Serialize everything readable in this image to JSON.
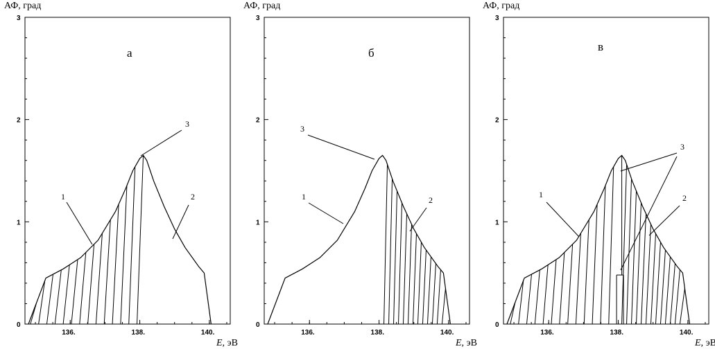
{
  "charts": [
    {
      "letter": "а",
      "ylabel": "АФ,  град",
      "xlabel_var": "E,",
      "xlabel_unit": " эВ"
    },
    {
      "letter": "б",
      "ylabel": "АФ,  град",
      "xlabel_var": "E,",
      "xlabel_unit": " эВ"
    },
    {
      "letter": "в",
      "ylabel": "АФ,  град",
      "xlabel_var": "E,",
      "xlabel_unit": " эВ"
    }
  ],
  "x_ticks": [
    "136.",
    "138.",
    "140."
  ],
  "y_ticks": [
    "0",
    "1",
    "2",
    "3"
  ],
  "curve_labels": [
    "1",
    "2",
    "3"
  ],
  "chart_data": [
    {
      "type": "area",
      "title": "а",
      "xlabel": "E, эВ",
      "ylabel": "АФ, град",
      "xlim": [
        134.7,
        140.6
      ],
      "ylim": [
        0,
        3
      ],
      "curve": {
        "x": [
          134.8,
          135.3,
          135.8,
          136.3,
          136.8,
          137.3,
          137.6,
          137.8,
          138.0,
          138.1,
          138.2,
          138.4,
          138.7,
          139.0,
          139.3,
          139.7,
          139.85,
          140.05
        ],
        "y": [
          0.0,
          0.45,
          0.54,
          0.65,
          0.82,
          1.1,
          1.33,
          1.5,
          1.62,
          1.65,
          1.6,
          1.4,
          1.15,
          0.93,
          0.75,
          0.56,
          0.5,
          0.0
        ]
      },
      "hatched_range": [
        134.8,
        138.1
      ],
      "labels": [
        "1",
        "2",
        "3"
      ]
    },
    {
      "type": "area",
      "title": "б",
      "xlabel": "E, эВ",
      "ylabel": "АФ, град",
      "xlim": [
        134.7,
        140.6
      ],
      "ylim": [
        0,
        3
      ],
      "curve": {
        "x": [
          134.8,
          135.3,
          135.8,
          136.3,
          136.8,
          137.3,
          137.6,
          137.8,
          138.0,
          138.1,
          138.2,
          138.4,
          138.7,
          139.0,
          139.3,
          139.7,
          139.85,
          140.05
        ],
        "y": [
          0.0,
          0.45,
          0.54,
          0.65,
          0.82,
          1.1,
          1.33,
          1.5,
          1.62,
          1.65,
          1.6,
          1.4,
          1.15,
          0.93,
          0.75,
          0.56,
          0.5,
          0.0
        ]
      },
      "hatched_range": [
        138.1,
        140.05
      ],
      "labels": [
        "1",
        "2",
        "3"
      ]
    },
    {
      "type": "area",
      "title": "в",
      "xlabel": "E, эВ",
      "ylabel": "АФ, град",
      "xlim": [
        134.7,
        140.6
      ],
      "ylim": [
        0,
        3
      ],
      "curve": {
        "x": [
          134.8,
          135.3,
          135.8,
          136.3,
          136.8,
          137.3,
          137.6,
          137.8,
          138.0,
          138.1,
          138.2,
          138.4,
          138.7,
          139.0,
          139.3,
          139.7,
          139.85,
          140.05
        ],
        "y": [
          0.0,
          0.45,
          0.54,
          0.65,
          0.82,
          1.1,
          1.33,
          1.5,
          1.62,
          1.65,
          1.6,
          1.4,
          1.15,
          0.93,
          0.75,
          0.56,
          0.5,
          0.0
        ]
      },
      "hatched_range": [
        134.8,
        140.05
      ],
      "gap": {
        "x": [
          137.95,
          138.15
        ],
        "y": 0.48
      },
      "labels": [
        "1",
        "2",
        "3"
      ]
    }
  ]
}
